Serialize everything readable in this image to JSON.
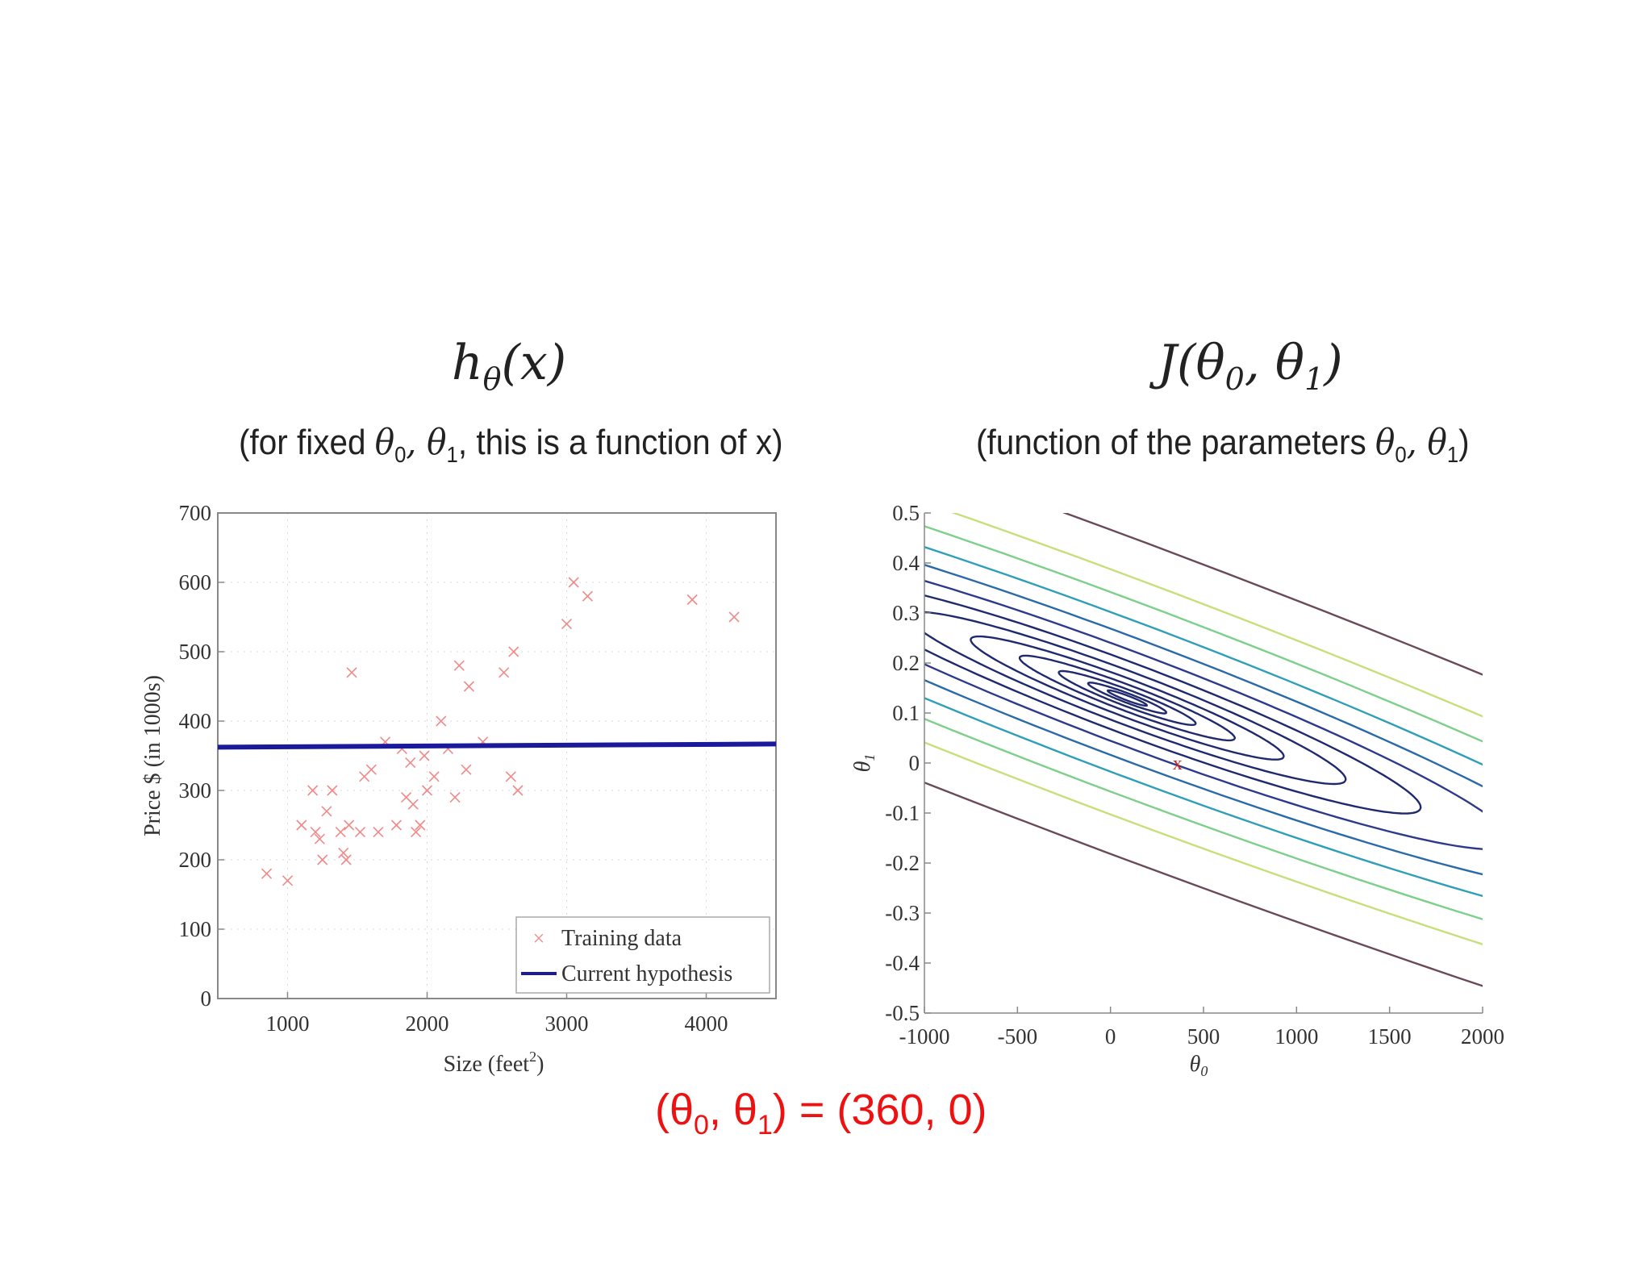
{
  "left_panel": {
    "title": {
      "text": "h",
      "sub": "θ",
      "rest": "(x)"
    },
    "subtitle": {
      "pre": "(for fixed ",
      "math": "θ",
      "s0": "0",
      "comma": ", θ",
      "s1": "1",
      "post": ", this is a function of x)"
    }
  },
  "right_panel": {
    "title": {
      "pre": "J(θ",
      "s0": "0",
      "mid": ", θ",
      "s1": "1",
      "post": ")"
    },
    "subtitle": {
      "pre": "(function of the parameters  ",
      "math": "θ",
      "s0": "0",
      "comma": ", θ",
      "s1": "1",
      "post": ")"
    }
  },
  "caption": {
    "open": "(θ",
    "s0": "0",
    "mid": ", θ",
    "s1": "1",
    "post": ") = (360, 0)",
    "color": "#ee1111"
  },
  "chart_data": [
    {
      "type": "scatter",
      "xlabel": "Size (feet²)",
      "ylabel": "Price $ (in 1000s)",
      "xlim": [
        500,
        4500
      ],
      "ylim": [
        0,
        700
      ],
      "xticks": [
        "1000",
        "2000",
        "3000",
        "4000"
      ],
      "yticks": [
        "0",
        "100",
        "200",
        "300",
        "400",
        "500",
        "600",
        "700"
      ],
      "xtick_values": [
        1000,
        2000,
        3000,
        4000
      ],
      "ytick_values": [
        0,
        100,
        200,
        300,
        400,
        500,
        600,
        700
      ],
      "legend": {
        "position": "bottom-right",
        "entries": [
          "Training data",
          "Current hypothesis"
        ]
      },
      "series": [
        {
          "name": "Training data",
          "marker": "x",
          "color": "#f08a8a",
          "points": [
            [
              850,
              180
            ],
            [
              1000,
              170
            ],
            [
              1100,
              250
            ],
            [
              1180,
              300
            ],
            [
              1200,
              240
            ],
            [
              1230,
              230
            ],
            [
              1250,
              200
            ],
            [
              1280,
              270
            ],
            [
              1320,
              300
            ],
            [
              1380,
              240
            ],
            [
              1400,
              210
            ],
            [
              1420,
              200
            ],
            [
              1440,
              250
            ],
            [
              1460,
              470
            ],
            [
              1520,
              240
            ],
            [
              1550,
              320
            ],
            [
              1600,
              330
            ],
            [
              1650,
              240
            ],
            [
              1700,
              370
            ],
            [
              1780,
              250
            ],
            [
              1820,
              360
            ],
            [
              1850,
              290
            ],
            [
              1880,
              340
            ],
            [
              1900,
              280
            ],
            [
              1920,
              240
            ],
            [
              1950,
              250
            ],
            [
              1980,
              350
            ],
            [
              2000,
              300
            ],
            [
              2050,
              320
            ],
            [
              2100,
              400
            ],
            [
              2150,
              360
            ],
            [
              2200,
              290
            ],
            [
              2230,
              480
            ],
            [
              2280,
              330
            ],
            [
              2300,
              450
            ],
            [
              2400,
              370
            ],
            [
              2550,
              470
            ],
            [
              2600,
              320
            ],
            [
              2620,
              500
            ],
            [
              2650,
              300
            ],
            [
              3000,
              540
            ],
            [
              3050,
              600
            ],
            [
              3150,
              580
            ],
            [
              3900,
              575
            ],
            [
              4200,
              550
            ]
          ]
        },
        {
          "name": "Current hypothesis",
          "line": true,
          "color": "#1a1a9a",
          "theta0": 360,
          "theta1": 0
        }
      ]
    },
    {
      "type": "contour",
      "xlabel": "θ0",
      "ylabel": "θ1",
      "xlim": [
        -1000,
        2000
      ],
      "ylim": [
        -0.5,
        0.5
      ],
      "xticks": [
        "-1000",
        "-500",
        "0",
        "500",
        "1000",
        "1500",
        "2000"
      ],
      "yticks": [
        "-0.5",
        "-0.4",
        "-0.3",
        "-0.2",
        "-0.1",
        "0",
        "0.1",
        "0.2",
        "0.3",
        "0.4",
        "0.5"
      ],
      "xtick_values": [
        -1000,
        -500,
        0,
        500,
        1000,
        1500,
        2000
      ],
      "ytick_values": [
        -0.5,
        -0.4,
        -0.3,
        -0.2,
        -0.1,
        0,
        0.1,
        0.2,
        0.3,
        0.4,
        0.5
      ],
      "center": [
        90,
        0.13
      ],
      "marker": {
        "point": [
          360,
          0
        ],
        "label": "x",
        "color": "#cc2222"
      },
      "levels": [
        {
          "k": 0.06,
          "color": "#1f2a6e"
        },
        {
          "k": 0.12,
          "color": "#1f2a6e"
        },
        {
          "k": 0.21,
          "color": "#1f2a6e"
        },
        {
          "k": 0.33,
          "color": "#1f2a6e"
        },
        {
          "k": 0.48,
          "color": "#1f2a6e"
        },
        {
          "k": 0.67,
          "color": "#1f2a6e"
        },
        {
          "k": 0.9,
          "color": "#1f2a6e"
        },
        {
          "k": 1.18,
          "color": "#2d3a8c"
        },
        {
          "k": 1.52,
          "color": "#2a6aa8"
        },
        {
          "k": 1.92,
          "color": "#2f9fb8"
        },
        {
          "k": 2.4,
          "color": "#7dcf8a"
        },
        {
          "k": 2.95,
          "color": "#c5e07a"
        },
        {
          "k": 3.9,
          "color": "#6a4a5a"
        }
      ]
    }
  ]
}
